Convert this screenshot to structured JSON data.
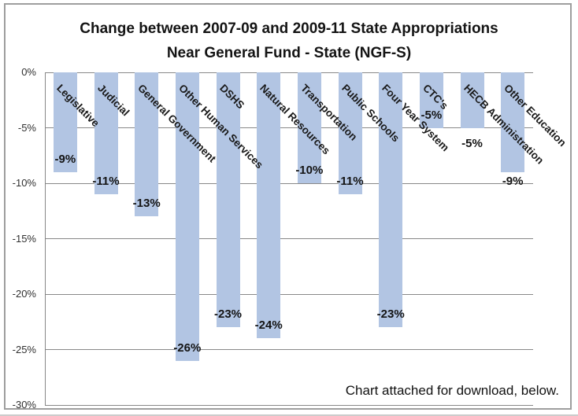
{
  "title": {
    "line1": "Change between 2007-09 and 2009-11 State Appropriations",
    "line2": "Near General Fund - State (NGF-S)"
  },
  "note": {
    "text": "Chart attached for download, below."
  },
  "chart_data": {
    "type": "bar",
    "orientation": "vertical-negative",
    "title": "Change between 2007-09 and 2009-11 State Appropriations Near General Fund - State (NGF-S)",
    "categories": [
      "Legislative",
      "Judicial",
      "General Government",
      "Other Human Services",
      "DSHS",
      "Natural Resources",
      "Transportation",
      "Public Schools",
      "Four Year System",
      "CTC's",
      "HECB Administration",
      "Other Education"
    ],
    "values": [
      -9,
      -11,
      -13,
      -26,
      -23,
      -24,
      -10,
      -11,
      -23,
      -5,
      -5,
      -9
    ],
    "bars": [
      {
        "category": "Legislative",
        "value": -9,
        "label": "-9%",
        "label_offset": -16
      },
      {
        "category": "Judicial",
        "value": -11,
        "label": "-11%",
        "label_offset": -16
      },
      {
        "category": "General Government",
        "value": -13,
        "label": "-13%",
        "label_offset": -16
      },
      {
        "category": "Other Human Services",
        "value": -26,
        "label": "-26%",
        "label_offset": -16
      },
      {
        "category": "DSHS",
        "value": -23,
        "label": "-23%",
        "label_offset": -16
      },
      {
        "category": "Natural Resources",
        "value": -24,
        "label": "-24%",
        "label_offset": -16
      },
      {
        "category": "Transportation",
        "value": -10,
        "label": "-10%",
        "label_offset": -16
      },
      {
        "category": "Public Schools",
        "value": -11,
        "label": "-11%",
        "label_offset": -16
      },
      {
        "category": "Four Year System",
        "value": -23,
        "label": "-23%",
        "label_offset": -16
      },
      {
        "category": "CTC's",
        "value": -5,
        "label": "-5%",
        "label_offset": -16
      },
      {
        "category": "HECB Administration",
        "value": -5,
        "label": "-5%",
        "label_offset": 20
      },
      {
        "category": "Other Education",
        "value": -9,
        "label": "-9%",
        "label_offset": 12
      }
    ],
    "y_ticks": [
      "0%",
      "-5%",
      "-10%",
      "-15%",
      "-20%",
      "-25%",
      "-30%"
    ],
    "ylim": [
      -30,
      0
    ],
    "y_step": 5,
    "grid": true,
    "legend": "none",
    "category_label_rotation_deg": 45,
    "colors": {
      "bar_fill": "#b2c5e3",
      "gridline": "#888888",
      "axis_line": "#888888",
      "tick_text": "#303030",
      "label_text": "#141414",
      "frame_border": "#9e9e9e"
    }
  }
}
